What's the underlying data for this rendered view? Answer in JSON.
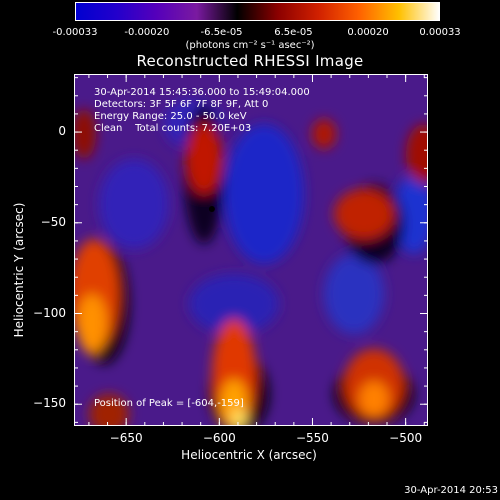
{
  "colorbar": {
    "ticks": [
      "-0.00033",
      "-0.00020",
      "-6.5e-05",
      "6.5e-05",
      "0.00020",
      "0.00033"
    ],
    "tick_values": [
      -0.00033,
      -0.0002,
      -6.5e-05,
      6.5e-05,
      0.0002,
      0.00033
    ],
    "units_label": "(photons cm⁻² s⁻¹ asec⁻²)",
    "colors": [
      "#0000d0",
      "#2200cc",
      "#5500bb",
      "#7a1aa0",
      "#000000",
      "#8b0000",
      "#d02000",
      "#ff6000",
      "#ffc000",
      "#ffffff"
    ]
  },
  "chart_data": {
    "type": "heatmap",
    "title": "Reconstructed RHESSI Image",
    "xlabel": "Heliocentric X (arcsec)",
    "ylabel": "Heliocentric Y (arcsec)",
    "xlim": [
      -678,
      -488
    ],
    "ylim": [
      -162,
      32
    ],
    "x_ticks": [
      -650,
      -600,
      -550,
      -500
    ],
    "y_ticks": [
      0,
      -50,
      -100,
      -150
    ],
    "info_lines": [
      "30-Apr-2014 15:45:36.000 to 15:49:04.000",
      "Detectors: 3F 5F 6F 7F 8F 9F, Att 0",
      "Energy Range: 25.0 - 50.0 keV",
      "Clean    Total counts: 7.20E+03"
    ],
    "peak_label": "Position of Peak = [-604,-159]",
    "peak": [
      -604,
      -159
    ]
  },
  "timestamp": "30-Apr-2014 20:53"
}
